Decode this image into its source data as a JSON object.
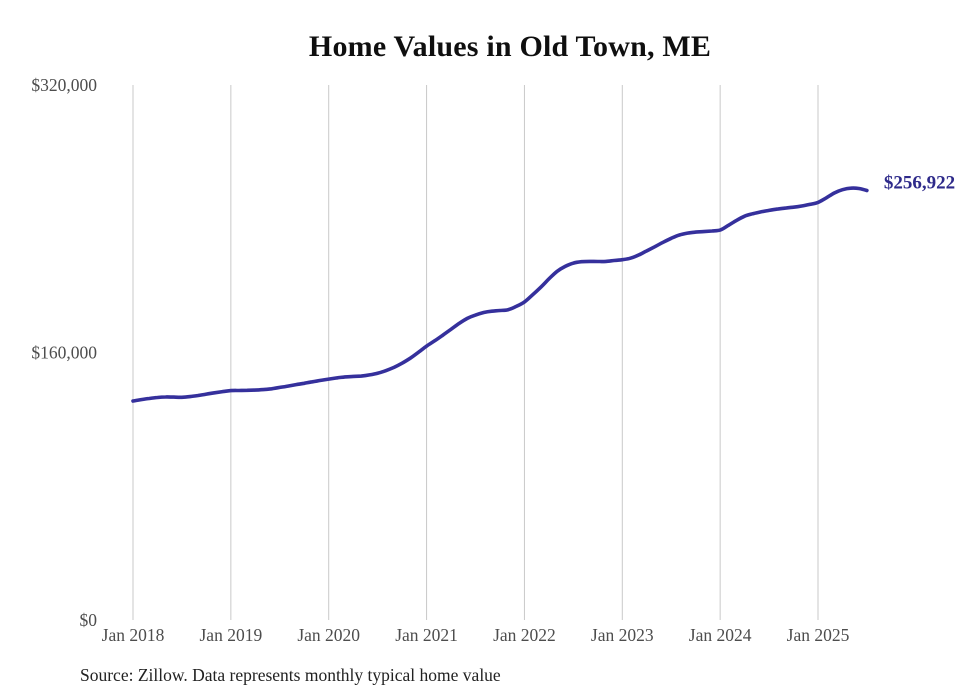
{
  "chart_data": {
    "type": "line",
    "title": "Home Values in Old Town, ME",
    "source": "Source: Zillow. Data represents monthly typical home value",
    "series_name": "Monthly typical home value",
    "end_label": "$256,922",
    "latest_value": 256922,
    "x_start": "2018-01",
    "frequency": "monthly",
    "x_tick_labels": [
      "Jan 2018",
      "Jan 2019",
      "Jan 2020",
      "Jan 2021",
      "Jan 2022",
      "Jan 2023",
      "Jan 2024",
      "Jan 2025"
    ],
    "y_tick_labels": [
      "$0",
      "$160,000",
      "$320,000"
    ],
    "y_tick_values": [
      0,
      160000,
      320000
    ],
    "ylim": [
      0,
      320000
    ],
    "grid": "vertical-only",
    "legend": "none",
    "colors": {
      "line": "#35309c",
      "end_label": "#2e2a8a",
      "gridline": "#c9c9c9",
      "tick_text": "#4d4d4d",
      "title_text": "#0f0f0f",
      "source_text": "#222222"
    },
    "values": [
      131000,
      131800,
      132500,
      133100,
      133400,
      133300,
      133200,
      133600,
      134300,
      135100,
      135900,
      136600,
      137200,
      137300,
      137400,
      137500,
      137800,
      138300,
      139100,
      139900,
      140800,
      141600,
      142500,
      143300,
      144100,
      144800,
      145400,
      145700,
      145900,
      146600,
      147600,
      149100,
      151100,
      153600,
      156600,
      160100,
      163800,
      167000,
      170400,
      173900,
      177400,
      180400,
      182400,
      183900,
      184700,
      185100,
      185600,
      187600,
      190200,
      194500,
      199000,
      204000,
      208500,
      211500,
      213500,
      214300,
      214500,
      214400,
      214500,
      215000,
      215500,
      216400,
      218300,
      220800,
      223300,
      225900,
      228300,
      230300,
      231400,
      232000,
      232300,
      232700,
      233200,
      236000,
      239000,
      241500,
      243000,
      244100,
      245000,
      245800,
      246400,
      246900,
      247600,
      248600,
      249800,
      252500,
      255400,
      257400,
      258300,
      258100,
      256922
    ]
  }
}
